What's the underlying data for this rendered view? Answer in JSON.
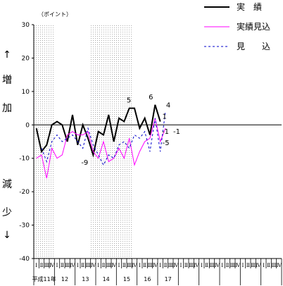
{
  "chart_data": {
    "type": "line",
    "unit_label": "（ポイント）",
    "y_ticks": [
      30,
      20,
      10,
      0,
      -10,
      -20,
      -30,
      -40
    ],
    "ylim": [
      -40,
      30
    ],
    "side_labels": {
      "up_arrow": "↑",
      "increase": [
        "増",
        "加"
      ],
      "decrease": [
        "減",
        "少"
      ],
      "down_arrow": "↓"
    },
    "quarter_labels": [
      "Ⅰ",
      "Ⅱ",
      "Ⅲ",
      "Ⅳ",
      "Ⅰ",
      "Ⅱ",
      "Ⅲ",
      "Ⅳ",
      "Ⅰ",
      "Ⅱ",
      "Ⅲ",
      "Ⅳ",
      "Ⅰ",
      "Ⅱ",
      "Ⅲ",
      "Ⅳ",
      "Ⅰ",
      "Ⅱ",
      "Ⅲ",
      "Ⅳ",
      "Ⅰ",
      "Ⅱ",
      "Ⅲ",
      "Ⅳ",
      "Ⅰ",
      "Ⅱ",
      "Ⅲ",
      "Ⅳ",
      "Ⅰ",
      "Ⅱ",
      "Ⅲ",
      "Ⅳ",
      "Ⅰ",
      "Ⅱ",
      "Ⅲ",
      "Ⅳ",
      "Ⅰ",
      "Ⅱ",
      "Ⅲ",
      "Ⅳ",
      "Ⅰ",
      "Ⅱ",
      "Ⅲ",
      "Ⅳ",
      "Ⅰ",
      "Ⅱ",
      "Ⅲ",
      "Ⅳ"
    ],
    "year_labels": [
      {
        "text": "平成11年",
        "quarter_start": 0,
        "quarter_end": 3
      },
      {
        "text": "12",
        "quarter_start": 4,
        "quarter_end": 7
      },
      {
        "text": "13",
        "quarter_start": 8,
        "quarter_end": 11
      },
      {
        "text": "14",
        "quarter_start": 12,
        "quarter_end": 15
      },
      {
        "text": "15",
        "quarter_start": 16,
        "quarter_end": 19
      },
      {
        "text": "16",
        "quarter_start": 20,
        "quarter_end": 23
      },
      {
        "text": "17",
        "quarter_start": 24,
        "quarter_end": 27
      }
    ],
    "shaded_ranges": [
      [
        0,
        4
      ],
      [
        11,
        19
      ]
    ],
    "series": [
      {
        "name": "実　績",
        "color": "#000000",
        "style": "solid",
        "values": [
          -1,
          -8,
          -6,
          0,
          1,
          0,
          -5,
          3,
          -6,
          0,
          -4,
          -9,
          -2,
          -3,
          3,
          -5,
          2,
          1,
          5,
          5,
          -1,
          2,
          -3,
          6,
          1
        ]
      },
      {
        "name": "実績見込",
        "color": "#ff00ff",
        "style": "solid",
        "values": [
          -10,
          -9,
          -16,
          -7,
          -10,
          -9,
          -3,
          -2,
          -3,
          -3,
          -2,
          -8,
          -10,
          -5,
          -11,
          -10,
          -7,
          -10,
          -4,
          -12,
          -8,
          -5,
          -4,
          2,
          -5,
          -1
        ]
      },
      {
        "name": "見　　込",
        "color": "#0000cc",
        "style": "dashed",
        "values": [
          null,
          -7,
          -11,
          -5,
          -3,
          -5,
          -4,
          -3,
          -5,
          -7,
          -1,
          -6,
          -9,
          -12,
          -9,
          -10,
          -6,
          -5,
          -7,
          -3,
          -4,
          -2,
          -8,
          2,
          -8,
          4
        ]
      }
    ],
    "annotations": [
      {
        "text": "-9",
        "series": 0,
        "index": 11
      },
      {
        "text": "5",
        "series": 0,
        "index": 19
      },
      {
        "text": "6",
        "series": 0,
        "index": 23
      },
      {
        "text": "1",
        "series": 0,
        "index": 24
      },
      {
        "text": "-1",
        "series": 1,
        "index": 25
      },
      {
        "text": "-5",
        "series": 1,
        "index": 24
      },
      {
        "text": "-1",
        "series": 1,
        "index": 25
      },
      {
        "text": "4",
        "series": 2,
        "index": 25
      }
    ]
  }
}
